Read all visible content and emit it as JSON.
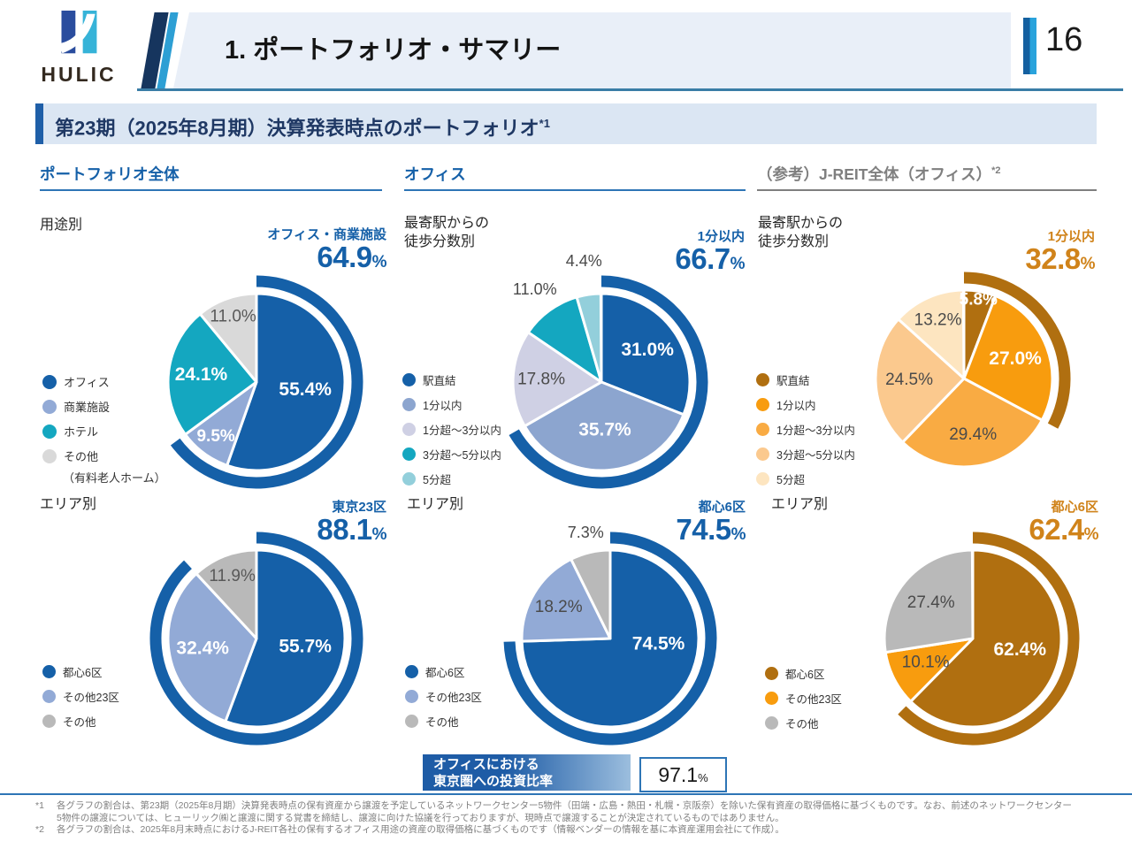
{
  "ui": {
    "percent": "%"
  },
  "header": {
    "logo_text": "HULIC",
    "title": "1. ポートフォリオ・サマリー",
    "page_number": "16"
  },
  "subtitle": {
    "text": "第23期（2025年8月期）決算発表時点のポートフォリオ",
    "note_ref": "*1"
  },
  "columns": [
    {
      "title": "ポートフォリオ全体",
      "note_ref": ""
    },
    {
      "title": "オフィス",
      "note_ref": ""
    },
    {
      "title": "（参考）J-REIT全体（オフィス）",
      "note_ref": "*2"
    }
  ],
  "colors": {
    "brand_blue": "#1560a8",
    "light_blue": "#92aad6",
    "teal": "#14a7c0",
    "light_teal": "#93cfdb",
    "lavender": "#cfd0e4",
    "gray_light": "#d9d9d9",
    "gray_mid": "#b9b9b9",
    "brand_brown": "#b06f10",
    "orange": "#f89c0e",
    "orange_callout": "#d0831a"
  },
  "chart_data": [
    {
      "type": "pie",
      "section_label": "用途別",
      "callout": {
        "label": "オフィス・商業施設",
        "value": "64.9",
        "color": "#1560a8"
      },
      "outer_arc": {
        "pct": 64.9,
        "color": "#1560a8"
      },
      "slices": [
        {
          "name": "オフィス",
          "pct": 55.4,
          "color": "#1560a8",
          "label": {
            "r": 0.56,
            "color": "#ffffff",
            "bold": true,
            "fs": 21
          }
        },
        {
          "name": "商業施設",
          "pct": 9.5,
          "color": "#92aad6",
          "label": {
            "r": 0.77,
            "color": "#ffffff",
            "bold": true,
            "fs": 19
          }
        },
        {
          "name": "ホテル",
          "pct": 24.1,
          "color": "#14a7c0",
          "label": {
            "r": 0.63,
            "color": "#ffffff",
            "bold": true,
            "fs": 21
          }
        },
        {
          "name": "その他（有料老人ホーム）",
          "pct": 11.0,
          "color": "#d9d9d9",
          "label": {
            "r": 0.78,
            "color": "#595959",
            "bold": false,
            "fs": 19
          }
        }
      ],
      "legend": [
        {
          "label": "オフィス",
          "color": "#1560a8"
        },
        {
          "label": "商業施設",
          "color": "#92aad6"
        },
        {
          "label": "ホテル",
          "color": "#14a7c0"
        },
        {
          "label": "その他",
          "color": "#d9d9d9"
        },
        {
          "label": "（有料老人ホーム）",
          "sub": true
        }
      ]
    },
    {
      "type": "pie",
      "section_label": "最寄駅からの\n徒歩分数別",
      "callout": {
        "label": "1分以内",
        "value": "66.7",
        "color": "#1560a8"
      },
      "outer_arc": {
        "pct": 66.7,
        "color": "#1560a8"
      },
      "slices": [
        {
          "name": "駅直結",
          "pct": 31.0,
          "color": "#1560a8",
          "label": {
            "r": 0.63,
            "color": "#ffffff",
            "bold": true,
            "fs": 21
          }
        },
        {
          "name": "1分以内",
          "pct": 35.7,
          "color": "#8ca5cf",
          "label": {
            "r": 0.55,
            "color": "#ffffff",
            "bold": true,
            "fs": 21
          }
        },
        {
          "name": "1分超～3分以内",
          "pct": 17.8,
          "color": "#cfd0e4",
          "label": {
            "r": 0.68,
            "color": "#4a4a4a",
            "bold": false,
            "fs": 19
          }
        },
        {
          "name": "3分超～5分以内",
          "pct": 11.0,
          "color": "#14a7c0",
          "label": {
            "r": 1.28,
            "color": "#4a4a4a",
            "bold": false,
            "fs": 18
          }
        },
        {
          "name": "5分超",
          "pct": 4.4,
          "color": "#93cfdb",
          "label": {
            "r": 1.37,
            "color": "#4a4a4a",
            "bold": false,
            "fs": 18
          }
        }
      ],
      "legend": [
        {
          "label": "駅直結",
          "color": "#1560a8"
        },
        {
          "label": "1分以内",
          "color": "#8ca5cf"
        },
        {
          "label": "1分超～3分以内",
          "color": "#cfd0e4"
        },
        {
          "label": "3分超～5分以内",
          "color": "#14a7c0"
        },
        {
          "label": "5分超",
          "color": "#93cfdb"
        }
      ]
    },
    {
      "type": "pie",
      "section_label": "最寄駅からの\n徒歩分数別",
      "callout": {
        "label": "1分以内",
        "value": "32.8",
        "color": "#d0831a"
      },
      "outer_arc": {
        "pct": 32.8,
        "color": "#b06f10"
      },
      "slices": [
        {
          "name": "駅直結",
          "pct": 5.8,
          "color": "#b06f10",
          "label": {
            "r": 0.9,
            "color": "#ffffff",
            "bold": true,
            "fs": 19
          }
        },
        {
          "name": "1分以内",
          "pct": 27.0,
          "color": "#f89c0e",
          "label": {
            "r": 0.62,
            "color": "#ffffff",
            "bold": true,
            "fs": 21
          }
        },
        {
          "name": "1分超～3分以内",
          "pct": 29.4,
          "color": "#f9ab43",
          "label": {
            "r": 0.65,
            "color": "#4a4a4a",
            "bold": false,
            "fs": 19
          }
        },
        {
          "name": "3分超～5分以内",
          "pct": 24.5,
          "color": "#fbc98e",
          "label": {
            "r": 0.62,
            "color": "#4a4a4a",
            "bold": false,
            "fs": 19
          }
        },
        {
          "name": "5分超",
          "pct": 13.2,
          "color": "#fde5c0",
          "label": {
            "r": 0.72,
            "color": "#4a4a4a",
            "bold": false,
            "fs": 19
          }
        }
      ],
      "legend": [
        {
          "label": "駅直結",
          "color": "#b06f10"
        },
        {
          "label": "1分以内",
          "color": "#f89c0e"
        },
        {
          "label": "1分超～3分以内",
          "color": "#f9ab43"
        },
        {
          "label": "3分超～5分以内",
          "color": "#fbc98e"
        },
        {
          "label": "5分超",
          "color": "#fde5c0"
        }
      ]
    },
    {
      "type": "pie",
      "section_label": "エリア別",
      "callout": {
        "label": "東京23区",
        "value": "88.1",
        "color": "#1560a8"
      },
      "outer_arc": {
        "pct": 88.1,
        "color": "#1560a8"
      },
      "slices": [
        {
          "name": "都心6区",
          "pct": 55.7,
          "color": "#1560a8",
          "label": {
            "r": 0.56,
            "color": "#ffffff",
            "bold": true,
            "fs": 21
          }
        },
        {
          "name": "その他23区",
          "pct": 32.4,
          "color": "#92aad6",
          "label": {
            "r": 0.62,
            "color": "#ffffff",
            "bold": true,
            "fs": 21
          }
        },
        {
          "name": "その他",
          "pct": 11.9,
          "color": "#b9b9b9",
          "label": {
            "r": 0.75,
            "color": "#595959",
            "bold": false,
            "fs": 19
          }
        }
      ],
      "legend": [
        {
          "label": "都心6区",
          "color": "#1560a8"
        },
        {
          "label": "その他23区",
          "color": "#92aad6"
        },
        {
          "label": "その他",
          "color": "#b9b9b9"
        }
      ]
    },
    {
      "type": "pie",
      "section_label": "エリア別",
      "callout": {
        "label": "都心6区",
        "value": "74.5",
        "color": "#1560a8"
      },
      "outer_arc": {
        "pct": 74.5,
        "color": "#1560a8"
      },
      "slices": [
        {
          "name": "都心6区",
          "pct": 74.5,
          "color": "#1560a8",
          "label": {
            "r": 0.55,
            "f": 0.27,
            "color": "#ffffff",
            "bold": true,
            "fs": 21
          }
        },
        {
          "name": "その他23区",
          "pct": 18.2,
          "color": "#92aad6",
          "label": {
            "r": 0.68,
            "color": "#4a4a4a",
            "bold": false,
            "fs": 19
          }
        },
        {
          "name": "その他",
          "pct": 7.3,
          "color": "#b9b9b9",
          "label": {
            "r": 1.22,
            "color": "#4a4a4a",
            "bold": false,
            "fs": 18
          }
        }
      ],
      "legend": [
        {
          "label": "都心6区",
          "color": "#1560a8"
        },
        {
          "label": "その他23区",
          "color": "#92aad6"
        },
        {
          "label": "その他",
          "color": "#b9b9b9"
        }
      ]
    },
    {
      "type": "pie",
      "section_label": "エリア別",
      "callout": {
        "label": "都心6区",
        "value": "62.4",
        "color": "#d0831a"
      },
      "outer_arc": {
        "pct": 62.4,
        "color": "#b06f10"
      },
      "slices": [
        {
          "name": "都心6区",
          "pct": 62.4,
          "color": "#b06f10",
          "label": {
            "r": 0.55,
            "f": 0.29,
            "color": "#ffffff",
            "bold": true,
            "fs": 21
          }
        },
        {
          "name": "その他23区",
          "pct": 10.1,
          "color": "#f89c0e",
          "label": {
            "r": 0.6,
            "color": "#4a4a4a",
            "bold": false,
            "fs": 19
          }
        },
        {
          "name": "その他",
          "pct": 27.4,
          "color": "#b9b9b9",
          "label": {
            "r": 0.62,
            "color": "#4a4a4a",
            "bold": false,
            "fs": 19
          }
        }
      ],
      "legend": [
        {
          "label": "都心6区",
          "color": "#b06f10"
        },
        {
          "label": "その他23区",
          "color": "#f89c0e"
        },
        {
          "label": "その他",
          "color": "#b9b9b9"
        }
      ]
    }
  ],
  "bottom_box": {
    "line1": "オフィスにおける",
    "line2": "東京圏への投資比率",
    "value": "97.1"
  },
  "footer": {
    "notes": [
      {
        "marker": "*1",
        "text": "各グラフの割合は、第23期（2025年8月期）決算発表時点の保有資産から譲渡を予定しているネットワークセンター5物件（田端・広島・熱田・札幌・京阪奈）を除いた保有資産の取得価格に基づくものです。なお、前述のネットワークセンター"
      },
      {
        "marker": "",
        "text": "5物件の譲渡については、ヒューリック㈱と譲渡に関する覚書を締結し、譲渡に向けた協議を行っておりますが、現時点で譲渡することが決定されているものではありません。"
      },
      {
        "marker": "*2",
        "text": "各グラフの割合は、2025年8月末時点におけるJ-REIT各社の保有するオフィス用途の資産の取得価格に基づくものです（情報ベンダーの情報を基に本資産運用会社にて作成）。"
      }
    ]
  }
}
